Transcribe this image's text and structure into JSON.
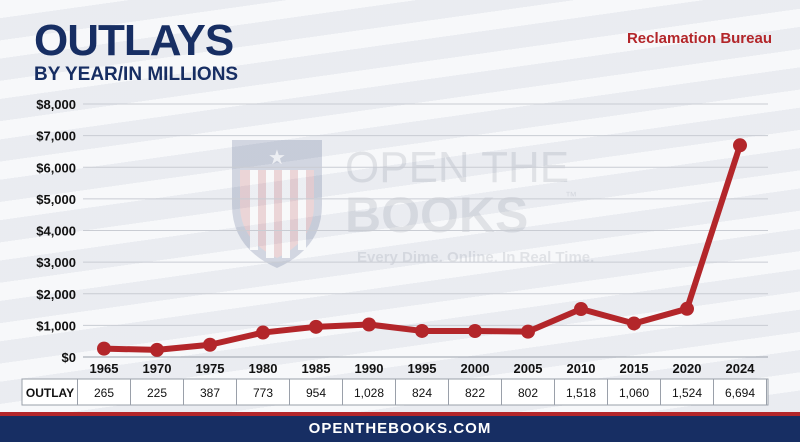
{
  "header": {
    "title": "OUTLAYS",
    "subtitle": "BY YEAR/IN MILLIONS",
    "agency": "Reclamation Bureau"
  },
  "watermark": {
    "line1": "OPEN THE",
    "line2": "BOOKS",
    "tagline": "Every Dime. Online. In Real Time.",
    "tm": "™"
  },
  "footer": {
    "site": "OPENTHEBOOKS.COM"
  },
  "colors": {
    "navy": "#172e63",
    "red": "#b3262a",
    "line": "#b3262a"
  },
  "chart_data": {
    "type": "line",
    "title": "OUTLAYS",
    "subtitle": "BY YEAR/IN MILLIONS",
    "x": [
      "1965",
      "1970",
      "1975",
      "1980",
      "1985",
      "1990",
      "1995",
      "2000",
      "2005",
      "2010",
      "2015",
      "2020",
      "2024"
    ],
    "series": [
      {
        "values": [
          265,
          225,
          387,
          773,
          954,
          1028,
          824,
          822,
          802,
          1518,
          1060,
          1524,
          6694
        ]
      }
    ],
    "ylim": [
      0,
      8000
    ],
    "yticks": [
      0,
      1000,
      2000,
      3000,
      4000,
      5000,
      6000,
      7000,
      8000
    ],
    "ytick_labels": [
      "$0",
      "$1,000",
      "$2,000",
      "$3,000",
      "$4,000",
      "$5,000",
      "$6,000",
      "$7,000",
      "$8,000"
    ],
    "grid": true,
    "table": {
      "row_label": "OUTLAY",
      "values": [
        "265",
        "225",
        "387",
        "773",
        "954",
        "1,028",
        "824",
        "822",
        "802",
        "1,518",
        "1,060",
        "1,524",
        "6,694"
      ]
    }
  }
}
